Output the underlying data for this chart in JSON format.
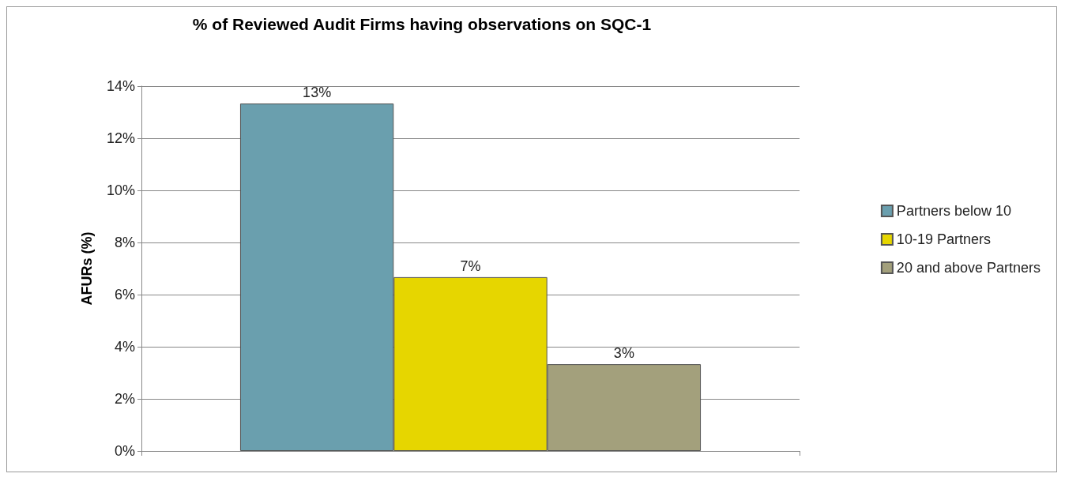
{
  "chart_data": {
    "type": "bar",
    "title": "% of Reviewed Audit Firms having observations on SQC-1",
    "ylabel": "AFURs (%)",
    "categories": [
      null
    ],
    "series": [
      {
        "name": "Partners below 10",
        "color": "#6a9fae",
        "values": [
          13.33
        ],
        "value_labels": [
          "13%"
        ]
      },
      {
        "name": "10-19 Partners",
        "color": "#e6d600",
        "values": [
          6.67
        ],
        "value_labels": [
          "7%"
        ]
      },
      {
        "name": "20 and above Partners",
        "color": "#a3a07c",
        "values": [
          3.33
        ],
        "value_labels": [
          "3%"
        ]
      }
    ],
    "ylim": [
      0,
      14
    ],
    "yticks": [
      {
        "value": 0,
        "label": "0%"
      },
      {
        "value": 2,
        "label": "2%"
      },
      {
        "value": 4,
        "label": "4%"
      },
      {
        "value": 6,
        "label": "6%"
      },
      {
        "value": 8,
        "label": "8%"
      },
      {
        "value": 10,
        "label": "10%"
      },
      {
        "value": 12,
        "label": "12%"
      },
      {
        "value": 14,
        "label": "14%"
      }
    ],
    "grid": "y",
    "legend": "right"
  }
}
